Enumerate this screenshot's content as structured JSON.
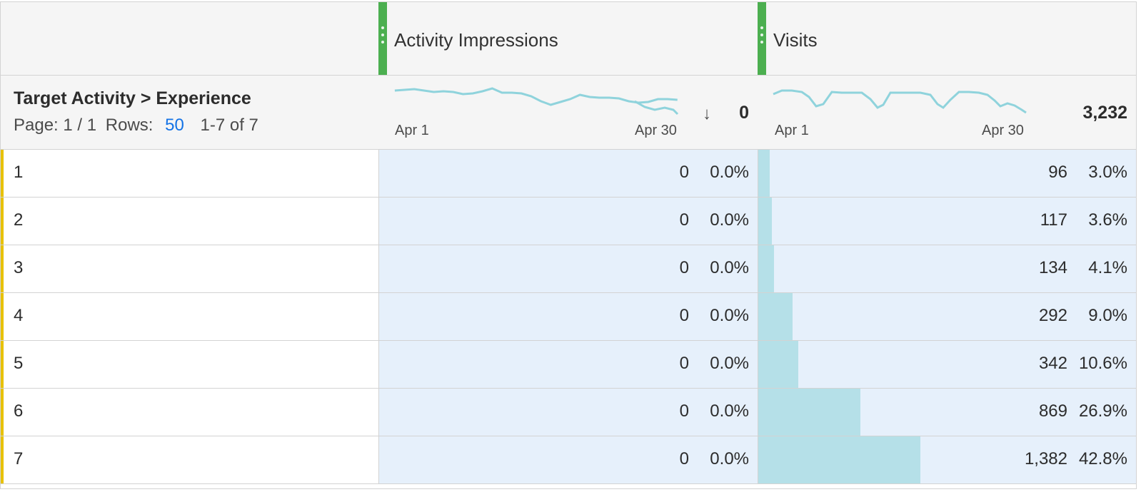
{
  "columns": [
    {
      "title": "Activity Impressions",
      "date_start": "Apr 1",
      "date_end": "Apr 30",
      "total": "0",
      "sorted": "descending"
    },
    {
      "title": "Visits",
      "date_start": "Apr 1",
      "date_end": "Apr 30",
      "total": "3,232"
    }
  ],
  "dimension": {
    "title": "Target Activity > Experience",
    "page_label": "Page: 1 / 1",
    "rows_label": "Rows:",
    "rows_value": "50",
    "range": "1-7 of 7"
  },
  "rows": [
    {
      "index": "1.",
      "impressions": "0",
      "impressions_pct": "0.0%",
      "visits": "96",
      "visits_pct": "3.0%",
      "visits_share": 0.03
    },
    {
      "index": "2",
      "impressions": "0",
      "impressions_pct": "0.0%",
      "visits": "117",
      "visits_pct": "3.6%",
      "visits_share": 0.036
    },
    {
      "index": "3",
      "impressions": "0",
      "impressions_pct": "0.0%",
      "visits": "134",
      "visits_pct": "4.1%",
      "visits_share": 0.041
    },
    {
      "index": "4",
      "impressions": "0",
      "impressions_pct": "0.0%",
      "visits": "292",
      "visits_pct": "9.0%",
      "visits_share": 0.09
    },
    {
      "index": "5",
      "impressions": "0",
      "impressions_pct": "0.0%",
      "visits": "342",
      "visits_pct": "10.6%",
      "visits_share": 0.106
    },
    {
      "index": "6",
      "impressions": "0",
      "impressions_pct": "0.0%",
      "visits": "869",
      "visits_pct": "26.9%",
      "visits_share": 0.269
    },
    {
      "index": "7.",
      "impressions": "0",
      "impressions_pct": "0.0%",
      "visits": "1,382",
      "visits_pct": "42.8%",
      "visits_share": 0.428
    }
  ],
  "colors": {
    "accent_bar": "#b5e0e8",
    "row_bg": "#e6f0fb",
    "column_grip": "#4caf50",
    "row_marker": "#e7c100",
    "link": "#1473e6",
    "sparkline": "#8fd3dc"
  }
}
